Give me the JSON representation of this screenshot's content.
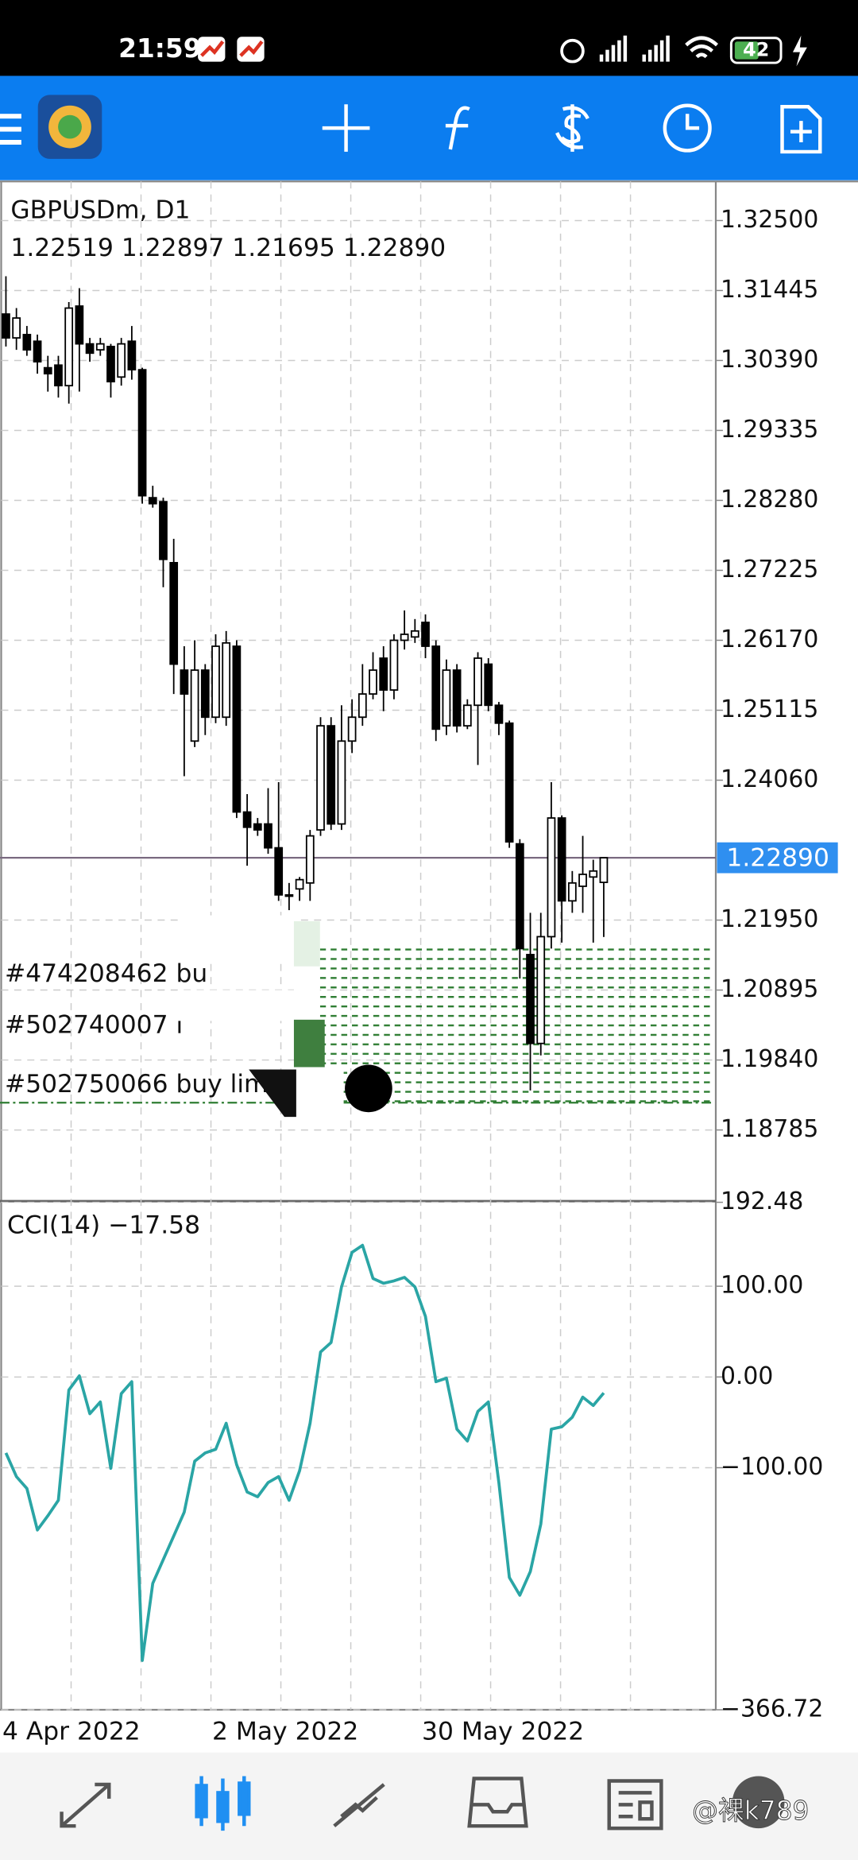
{
  "status_bar": {
    "time": "21:59",
    "battery": "42"
  },
  "chart_data": [
    {
      "type": "candlestick",
      "title": "GBPUSDm, D1",
      "ohlc_label": "1.22519 1.22897 1.21695 1.22890",
      "categories": [
        "4 Apr 2022",
        null,
        null,
        null,
        null,
        null,
        null,
        null,
        null,
        null,
        null,
        null,
        null,
        null,
        null,
        null,
        null,
        null,
        null,
        null,
        "2 May 2022",
        null,
        null,
        null,
        null,
        null,
        null,
        null,
        null,
        null,
        null,
        null,
        null,
        null,
        null,
        null,
        null,
        null,
        null,
        null,
        "30 May 2022",
        null,
        null,
        null,
        null,
        null,
        null,
        null,
        null,
        null,
        null,
        null,
        null,
        null,
        null,
        null,
        null,
        null
      ],
      "open": [
        1.3109,
        1.3073,
        1.3078,
        1.3068,
        1.3028,
        1.3032,
        1.3001,
        1.3121,
        1.3064,
        1.3055,
        1.306,
        1.3014,
        1.3068,
        1.3025,
        1.2832,
        1.2826,
        1.2734,
        1.2572,
        1.2465,
        1.2572,
        1.2501,
        1.2501,
        1.2608,
        1.2358,
        1.234,
        1.234,
        1.2304,
        1.2233,
        1.2242,
        1.2251,
        1.2331,
        1.2488,
        1.234,
        1.2465,
        1.2501,
        1.2536,
        1.259,
        1.2542,
        1.2617,
        1.2622,
        1.2644,
        1.2608,
        1.2488,
        1.2572,
        1.2488,
        1.2519,
        1.2581,
        1.2519,
        1.2492,
        1.231,
        1.2143,
        1.2009,
        1.217,
        1.2349,
        1.2224,
        1.2246,
        1.226,
        1.22519
      ],
      "high": [
        1.3166,
        1.3118,
        1.3091,
        1.3078,
        1.3046,
        1.3046,
        1.3127,
        1.3148,
        1.3073,
        1.3073,
        1.3064,
        1.3073,
        1.3091,
        1.3028,
        1.285,
        1.2832,
        1.277,
        1.2608,
        1.2617,
        1.2581,
        1.2626,
        1.2631,
        1.2617,
        1.2385,
        1.2349,
        1.2394,
        1.2403,
        1.2251,
        1.226,
        1.2331,
        1.2501,
        1.2501,
        1.2519,
        1.2528,
        1.2581,
        1.2599,
        1.2608,
        1.2626,
        1.2662,
        1.2649,
        1.2656,
        1.2617,
        1.2588,
        1.2581,
        1.2528,
        1.2599,
        1.259,
        1.2524,
        1.2496,
        1.2317,
        1.2206,
        1.2206,
        1.2403,
        1.2353,
        1.2269,
        1.2322,
        1.2286,
        1.22897
      ],
      "low": [
        1.306,
        1.3055,
        1.3046,
        1.3019,
        1.2992,
        1.2983,
        1.2974,
        1.2992,
        1.3037,
        1.3046,
        1.2983,
        1.3001,
        1.301,
        1.2823,
        1.2817,
        1.2697,
        1.2536,
        1.2412,
        1.2456,
        1.2474,
        1.2492,
        1.2488,
        1.2349,
        1.2277,
        1.2322,
        1.2295,
        1.2224,
        1.221,
        1.2224,
        1.2224,
        1.2322,
        1.2331,
        1.2331,
        1.2447,
        1.2488,
        1.2528,
        1.251,
        1.2528,
        1.2603,
        1.2613,
        1.259,
        1.2465,
        1.2474,
        1.2478,
        1.2483,
        1.2429,
        1.251,
        1.2474,
        1.2304,
        1.2107,
        1.1938,
        1.1991,
        1.2152,
        1.2161,
        1.2206,
        1.2206,
        1.2161,
        1.21695
      ],
      "close": [
        1.3073,
        1.3103,
        1.3055,
        1.3037,
        1.3019,
        1.3001,
        1.3118,
        1.3064,
        1.305,
        1.3064,
        1.3007,
        1.3064,
        1.3025,
        1.2835,
        1.2823,
        1.2739,
        1.2581,
        1.2536,
        1.2572,
        1.2501,
        1.2608,
        1.2613,
        1.2358,
        1.2335,
        1.2331,
        1.2304,
        1.2233,
        1.2231,
        1.2256,
        1.2322,
        1.2488,
        1.234,
        1.2465,
        1.2501,
        1.2536,
        1.2572,
        1.2542,
        1.2617,
        1.2626,
        1.2631,
        1.2608,
        1.2483,
        1.2572,
        1.2488,
        1.2519,
        1.259,
        1.2519,
        1.2492,
        1.2313,
        1.2152,
        1.2009,
        1.217,
        1.2349,
        1.2224,
        1.2251,
        1.2264,
        1.2269,
        1.2289
      ],
      "up_color": "#ffffff",
      "down_color": "#000000",
      "ylim": [
        1.1773,
        1.3309
      ],
      "yticks": [
        {
          "value": 1.325,
          "label": "1.32500"
        },
        {
          "value": 1.31445,
          "label": "1.31445"
        },
        {
          "value": 1.3039,
          "label": "1.30390"
        },
        {
          "value": 1.29335,
          "label": "1.29335"
        },
        {
          "value": 1.2828,
          "label": "1.28280"
        },
        {
          "value": 1.27225,
          "label": "1.27225"
        },
        {
          "value": 1.2617,
          "label": "1.26170"
        },
        {
          "value": 1.25115,
          "label": "1.25115"
        },
        {
          "value": 1.2406,
          "label": "1.24060"
        },
        {
          "value": 1.2195,
          "label": "1.21950"
        },
        {
          "value": 1.20895,
          "label": "1.20895"
        },
        {
          "value": 1.1984,
          "label": "1.19840"
        },
        {
          "value": 1.18785,
          "label": "1.18785"
        }
      ],
      "grid": true,
      "current_price": {
        "value": 1.2289,
        "label": "1.22890"
      },
      "orders": [
        "#474208462 bu",
        "#502740007 l",
        "#502750066 buy lim"
      ]
    },
    {
      "type": "line",
      "title": "CCI(14) −17.58",
      "color": "#2aa5a5",
      "values": [
        -83.7,
        -109.8,
        -122.9,
        -168.6,
        -152.9,
        -135.9,
        -14.4,
        1.3,
        -40.5,
        -27.5,
        -100.7,
        -18.3,
        -5.2,
        -312.4,
        -227.5,
        -201.3,
        -175.2,
        -149.0,
        -92.8,
        -83.7,
        -79.7,
        -51.0,
        -96.7,
        -126.8,
        -132.0,
        -116.3,
        -109.8,
        -135.9,
        -103.3,
        -51.0,
        27.5,
        37.9,
        99.3,
        137.3,
        145.1,
        108.5,
        103.3,
        105.9,
        109.8,
        99.3,
        66.7,
        -5.2,
        -1.3,
        -57.5,
        -70.6,
        -37.9,
        -27.5,
        -116.3,
        -220.9,
        -240.5,
        -214.4,
        -162.1,
        -57.5,
        -54.9,
        -44.4,
        -22.2,
        -31.4,
        -17.58
      ],
      "ylim": [
        -366.72,
        192.48
      ],
      "yticks": [
        {
          "value": 192.48,
          "label": "192.48"
        },
        {
          "value": 100,
          "label": "100.00"
        },
        {
          "value": 0,
          "label": "0.00"
        },
        {
          "value": -100,
          "label": "−100.00"
        },
        {
          "value": -366.72,
          "label": "−366.72"
        }
      ],
      "grid": true
    }
  ],
  "watermark": "@裸k789"
}
